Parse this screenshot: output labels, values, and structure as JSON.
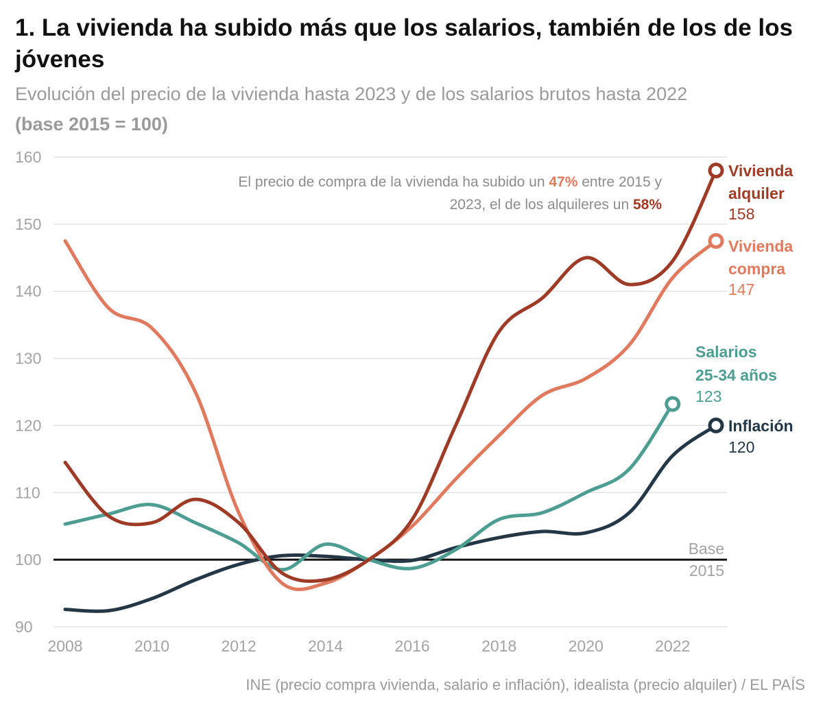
{
  "title": "1. La vivienda ha subido más que los salarios, también de los de los jóvenes",
  "subtitle": "Evolución del precio de la vivienda hasta 2023 y de los salarios brutos hasta 2022",
  "subtitle_base": "(base 2015 = 100)",
  "source": "INE (precio compra vivienda, salario e inflación), idealista (precio alquiler) / EL PAÍS",
  "colors": {
    "alquiler": "#9e3b26",
    "compra": "#e07a5f",
    "salarios": "#4e9d91",
    "inflacion": "#243746",
    "grid": "#e3e3e3",
    "base": "#111111"
  },
  "annotation": {
    "line1_pre": "El precio de compra de la vivienda ha subido un ",
    "line1_pct": "47%",
    "line1_post": " entre 2015 y",
    "line2_pre": "2023, el de los alquileres un ",
    "line2_pct": "58%"
  },
  "chart_data": {
    "type": "line",
    "xlim": [
      2008,
      2023
    ],
    "ylim": [
      90,
      160
    ],
    "xticks": [
      "2008",
      "2010",
      "2012",
      "2014",
      "2016",
      "2018",
      "2020",
      "2022"
    ],
    "yticks": [
      "90",
      "100",
      "110",
      "120",
      "130",
      "140",
      "150",
      "160"
    ],
    "grid": true,
    "baseline": {
      "value": 100,
      "label_line1": "Base",
      "label_line2": "2015"
    },
    "series": [
      {
        "key": "alquiler",
        "label_line1": "Vivienda",
        "label_line2": "alquiler",
        "end_value": "158",
        "x": [
          2008,
          2009,
          2010,
          2011,
          2012,
          2013,
          2014,
          2015,
          2016,
          2017,
          2018,
          2019,
          2020,
          2021,
          2022,
          2023
        ],
        "values": [
          114.5,
          106.5,
          105.5,
          109,
          105.5,
          98,
          97,
          100,
          106,
          120,
          134,
          139,
          145,
          141,
          144.5,
          158
        ]
      },
      {
        "key": "compra",
        "label_line1": "Vivienda",
        "label_line2": "compra",
        "end_value": "147",
        "x": [
          2008,
          2009,
          2010,
          2011,
          2012,
          2013,
          2014,
          2015,
          2016,
          2017,
          2018,
          2019,
          2020,
          2021,
          2022,
          2023
        ],
        "values": [
          147.5,
          137.5,
          134.5,
          125,
          107,
          96.5,
          96.5,
          100,
          105,
          112,
          118.5,
          124.5,
          127,
          132,
          142,
          147.5
        ]
      },
      {
        "key": "salarios",
        "label_line1": "Salarios",
        "label_line2": "25-34 años",
        "end_value": "123",
        "x": [
          2008,
          2009,
          2010,
          2011,
          2012,
          2013,
          2014,
          2015,
          2016,
          2017,
          2018,
          2019,
          2020,
          2021,
          2022
        ],
        "values": [
          105.3,
          106.8,
          108.2,
          105.5,
          102.5,
          98.5,
          102.3,
          100,
          98.7,
          101.5,
          106,
          107,
          110,
          113.5,
          123.2
        ]
      },
      {
        "key": "inflacion",
        "label_line1": "Inflación",
        "label_line2": "",
        "end_value": "120",
        "x": [
          2008,
          2009,
          2010,
          2011,
          2012,
          2013,
          2014,
          2015,
          2016,
          2017,
          2018,
          2019,
          2020,
          2021,
          2022,
          2023
        ],
        "values": [
          92.6,
          92.4,
          94.2,
          97,
          99.3,
          100.6,
          100.5,
          100,
          99.9,
          101.8,
          103.3,
          104.2,
          104,
          107,
          115.5,
          120
        ]
      }
    ]
  }
}
